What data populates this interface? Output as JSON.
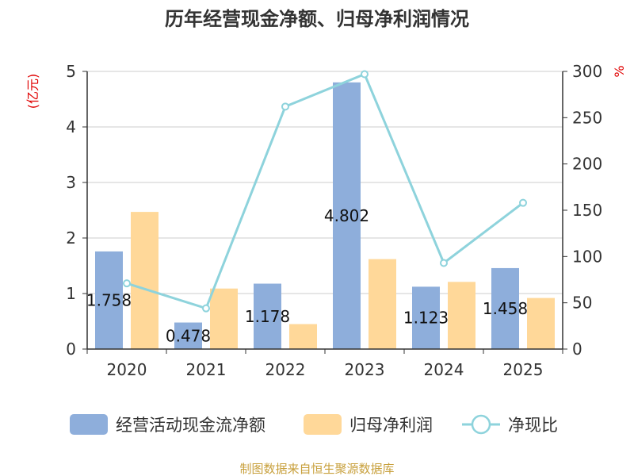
{
  "chart_data": {
    "type": "bar",
    "title": "历年经营现金净额、归母净利润情况",
    "categories": [
      "2020",
      "2021",
      "2022",
      "2023",
      "2024",
      "2025"
    ],
    "series": [
      {
        "name": "经营活动现金流净额",
        "type": "bar",
        "axis": "left",
        "color": "#8eaedb",
        "values": [
          1.758,
          0.478,
          1.178,
          4.802,
          1.123,
          1.458
        ],
        "labels": [
          "1.758",
          "0.478",
          "1.178",
          "4.802",
          "1.123",
          "1.458"
        ]
      },
      {
        "name": "归母净利润",
        "type": "bar",
        "axis": "left",
        "color": "#ffd899",
        "values": [
          2.47,
          1.09,
          0.45,
          1.62,
          1.21,
          0.92
        ]
      },
      {
        "name": "净现比",
        "type": "line",
        "axis": "right",
        "color": "#8ed3dc",
        "values": [
          71,
          44,
          262,
          297,
          93,
          158
        ]
      }
    ],
    "y_left": {
      "unit": "(亿元)",
      "min": 0,
      "max": 5,
      "ticks": [
        "0",
        "1",
        "2",
        "3",
        "4",
        "5"
      ]
    },
    "y_right": {
      "unit": "%",
      "min": 0,
      "max": 300,
      "ticks": [
        "0",
        "50",
        "100",
        "150",
        "200",
        "250",
        "300"
      ]
    },
    "grid": true,
    "legend_position": "bottom",
    "source": "制图数据来自恒生聚源数据库"
  }
}
